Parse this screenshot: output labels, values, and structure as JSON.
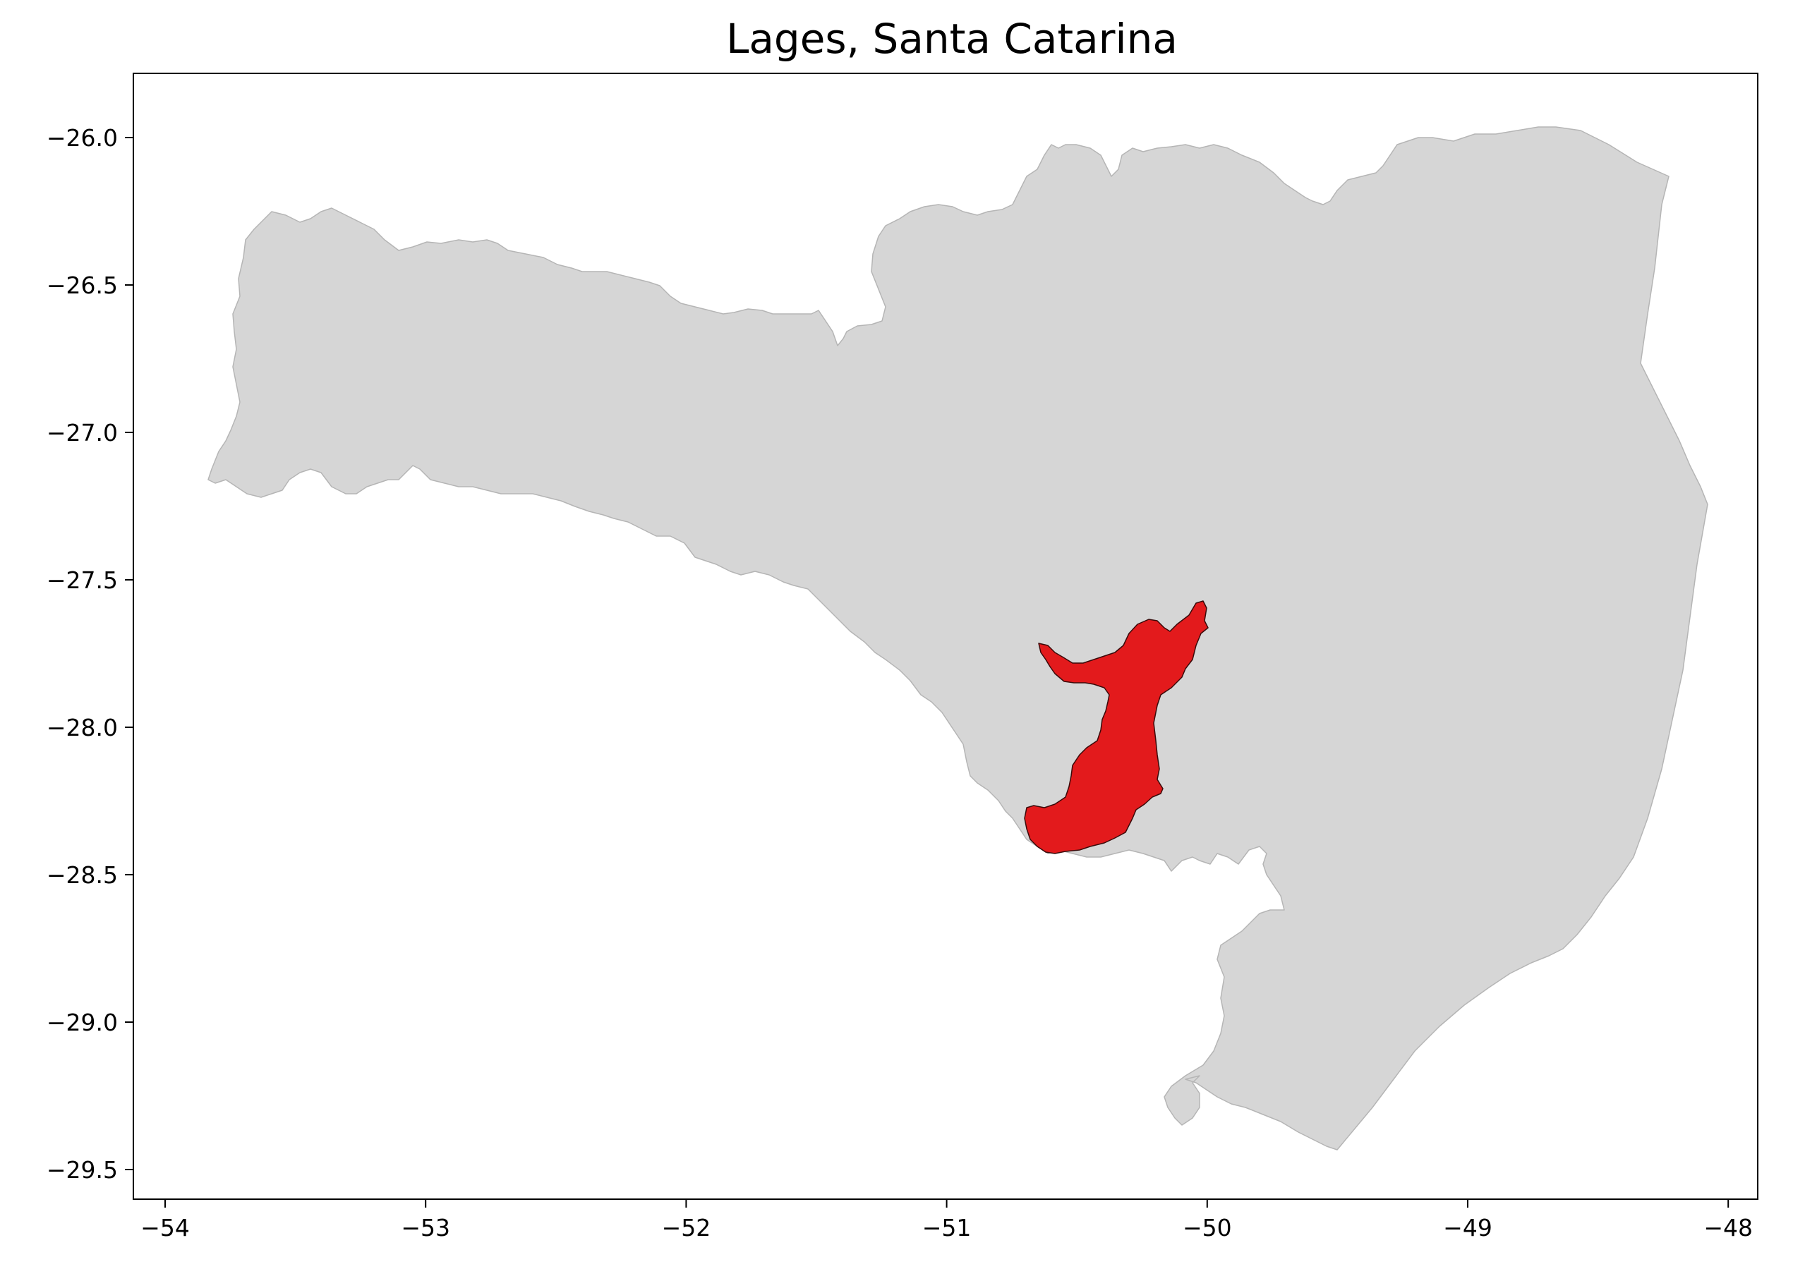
{
  "title": "Lages, Santa Catarina",
  "map": {
    "state_fill": "#d6d6d6",
    "state_edge": "#b5b5b5",
    "highlight_fill": "#e31a1c",
    "highlight_edge": "#3a0a0a",
    "x_ticks": [
      {
        "value": -54,
        "label": "−54"
      },
      {
        "value": -53,
        "label": "−53"
      },
      {
        "value": -52,
        "label": "−52"
      },
      {
        "value": -51,
        "label": "−51"
      },
      {
        "value": -50,
        "label": "−50"
      },
      {
        "value": -49,
        "label": "−49"
      },
      {
        "value": -48,
        "label": "−48"
      }
    ],
    "y_ticks": [
      {
        "value": -26.0,
        "label": "−26.0"
      },
      {
        "value": -26.5,
        "label": "−26.5"
      },
      {
        "value": -27.0,
        "label": "−27.0"
      },
      {
        "value": -27.5,
        "label": "−27.5"
      },
      {
        "value": -28.0,
        "label": "−28.0"
      },
      {
        "value": -28.5,
        "label": "−28.5"
      },
      {
        "value": -29.0,
        "label": "−29.0"
      },
      {
        "value": -29.5,
        "label": "−29.5"
      }
    ]
  }
}
